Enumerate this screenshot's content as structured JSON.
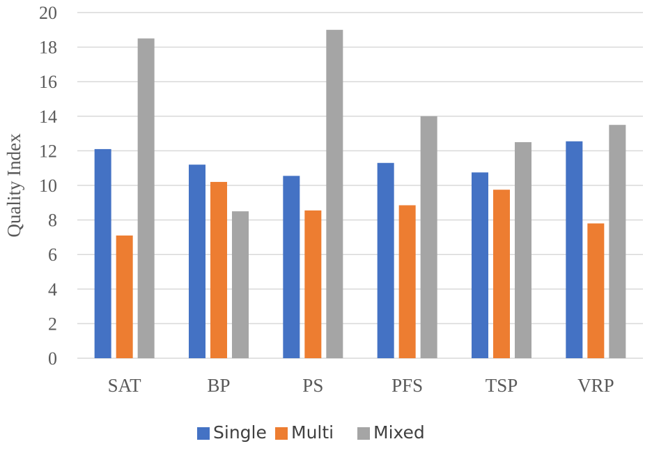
{
  "chart_data": {
    "type": "bar",
    "title": "",
    "xlabel": "",
    "ylabel": "Quality Index",
    "ylim": [
      0,
      20
    ],
    "yticks": [
      0,
      2,
      4,
      6,
      8,
      10,
      12,
      14,
      16,
      18,
      20
    ],
    "grid": true,
    "legend_position": "bottom",
    "categories": [
      "SAT",
      "BP",
      "PS",
      "PFS",
      "TSP",
      "VRP"
    ],
    "series": [
      {
        "name": "Single",
        "color": "#4472c4",
        "values": [
          12.1,
          11.2,
          10.55,
          11.3,
          10.75,
          12.55
        ]
      },
      {
        "name": "Multi",
        "color": "#ed7d31",
        "values": [
          7.1,
          10.2,
          8.55,
          8.85,
          9.75,
          7.8
        ]
      },
      {
        "name": "Mixed",
        "color": "#a5a5a5",
        "values": [
          18.5,
          8.5,
          19.0,
          14.0,
          12.5,
          13.5
        ]
      }
    ]
  }
}
